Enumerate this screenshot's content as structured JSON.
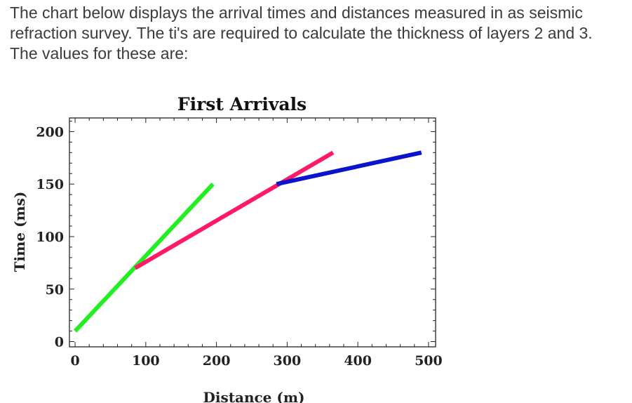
{
  "question": {
    "lines": [
      "The chart below displays the arrival times and distances measured in as seismic",
      "refraction survey. The ti's are required to calculate the thickness of layers 2 and 3.",
      "The values for these are:"
    ]
  },
  "chart_data": {
    "type": "line",
    "title": "First Arrivals",
    "xlabel": "Distance (m)",
    "ylabel": "Time (ms)",
    "xlim": [
      -8,
      510
    ],
    "ylim": [
      -5,
      213
    ],
    "x_ticks": [
      0,
      100,
      200,
      300,
      400,
      500
    ],
    "y_ticks": [
      0,
      50,
      100,
      150,
      200
    ],
    "grid": false,
    "series": [
      {
        "color": "#22ee22",
        "points": [
          [
            0,
            10
          ],
          [
            195,
            150
          ]
        ]
      },
      {
        "color": "#ff1a66",
        "points": [
          [
            85,
            70
          ],
          [
            365,
            180
          ]
        ]
      },
      {
        "color": "#0a14cc",
        "points": [
          [
            285,
            150
          ],
          [
            490,
            180
          ]
        ]
      }
    ]
  }
}
